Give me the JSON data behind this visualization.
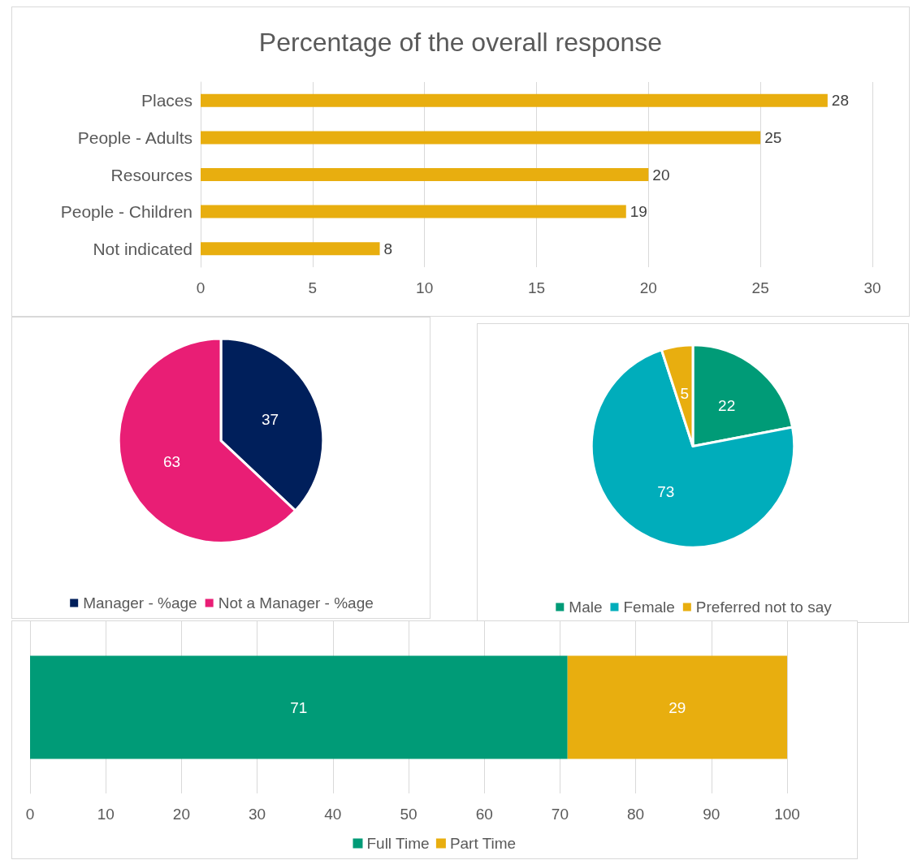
{
  "chart_data": [
    {
      "type": "bar",
      "orientation": "horizontal",
      "title": "Percentage of the overall response",
      "categories": [
        "Places",
        "People - Adults",
        "Resources",
        "People - Children",
        "Not indicated"
      ],
      "values": [
        28,
        25,
        20,
        19,
        8
      ],
      "color": "#e8ae0f",
      "xlim": [
        0,
        30
      ],
      "xticks": [
        0,
        5,
        10,
        15,
        20,
        25,
        30
      ],
      "grid": "x",
      "data_labels": true,
      "legend": false
    },
    {
      "type": "pie",
      "categories": [
        "Manager - %age",
        "Not a Manager - %age"
      ],
      "values": [
        37,
        63
      ],
      "colors": [
        "#001f5b",
        "#e91e75"
      ],
      "data_labels": true,
      "legend": "bottom"
    },
    {
      "type": "pie",
      "categories": [
        "Male",
        "Female",
        "Preferred not to say"
      ],
      "values": [
        22,
        73,
        5
      ],
      "colors": [
        "#009b77",
        "#00adbb",
        "#e8ae0f"
      ],
      "data_labels": true,
      "legend": "bottom"
    },
    {
      "type": "bar",
      "orientation": "horizontal",
      "stacked": true,
      "categories": [
        null
      ],
      "series": [
        {
          "name": "Full Time",
          "color": "#009b77",
          "values": [
            71
          ]
        },
        {
          "name": "Part Time",
          "color": "#e8ae0f",
          "values": [
            29
          ]
        }
      ],
      "xlim": [
        0,
        100
      ],
      "xticks": [
        0,
        10,
        20,
        30,
        40,
        50,
        60,
        70,
        80,
        90,
        100
      ],
      "grid": "x",
      "data_labels": true,
      "legend": "bottom"
    }
  ]
}
